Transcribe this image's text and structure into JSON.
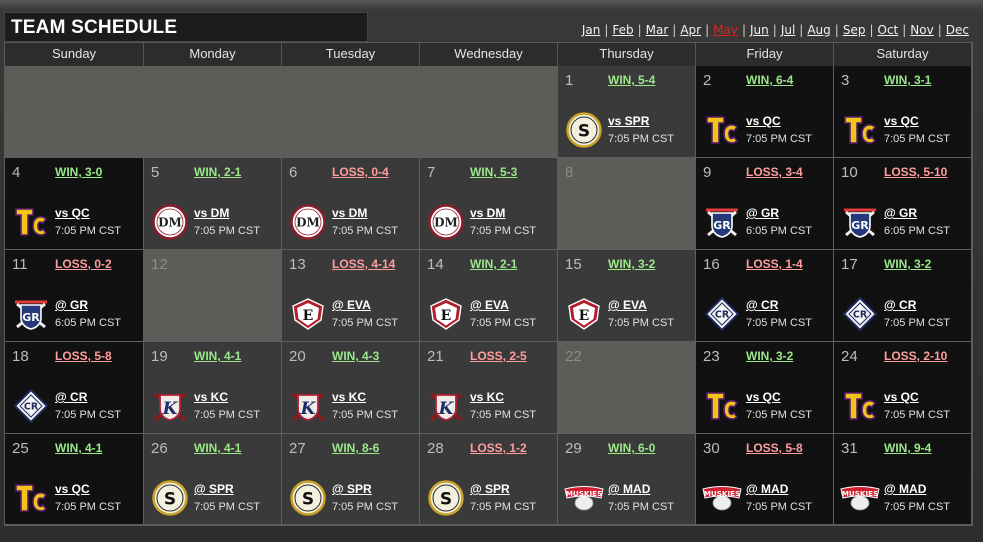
{
  "title": "TEAM SCHEDULE",
  "months": [
    "Jan",
    "Feb",
    "Mar",
    "Apr",
    "May",
    "Jun",
    "Jul",
    "Aug",
    "Sep",
    "Oct",
    "Nov",
    "Dec"
  ],
  "active_month": "May",
  "weekdays": [
    "Sunday",
    "Monday",
    "Tuesday",
    "Wednesday",
    "Thursday",
    "Friday",
    "Saturday"
  ],
  "colors": {
    "win": "#9ae88a",
    "loss": "#ff9e9e",
    "active_month": "#e02020"
  },
  "days": [
    {
      "day": "",
      "result": "",
      "opponent": "",
      "time": "",
      "logo": ""
    },
    {
      "day": "",
      "result": "",
      "opponent": "",
      "time": "",
      "logo": ""
    },
    {
      "day": "",
      "result": "",
      "opponent": "",
      "time": "",
      "logo": ""
    },
    {
      "day": "",
      "result": "",
      "opponent": "",
      "time": "",
      "logo": ""
    },
    {
      "day": "1",
      "result": "WIN, 5-4",
      "opponent": "vs SPR",
      "time": "7:05 PM CST",
      "logo": "spr-logo-icon"
    },
    {
      "day": "2",
      "result": "WIN, 6-4",
      "opponent": "vs QC",
      "time": "7:05 PM CST",
      "logo": "qc-logo-icon"
    },
    {
      "day": "3",
      "result": "WIN, 3-1",
      "opponent": "vs QC",
      "time": "7:05 PM CST",
      "logo": "qc-logo-icon"
    },
    {
      "day": "4",
      "result": "WIN, 3-0",
      "opponent": "vs QC",
      "time": "7:05 PM CST",
      "logo": "qc-logo-icon"
    },
    {
      "day": "5",
      "result": "WIN, 2-1",
      "opponent": "vs DM",
      "time": "7:05 PM CST",
      "logo": "dm-logo-icon"
    },
    {
      "day": "6",
      "result": "LOSS, 0-4",
      "opponent": "vs DM",
      "time": "7:05 PM CST",
      "logo": "dm-logo-icon"
    },
    {
      "day": "7",
      "result": "WIN, 5-3",
      "opponent": "vs DM",
      "time": "7:05 PM CST",
      "logo": "dm-logo-icon"
    },
    {
      "day": "8",
      "result": "",
      "opponent": "",
      "time": "",
      "logo": ""
    },
    {
      "day": "9",
      "result": "LOSS, 3-4",
      "opponent": "@ GR",
      "time": "6:05 PM CST",
      "logo": "gr-logo-icon"
    },
    {
      "day": "10",
      "result": "LOSS, 5-10",
      "opponent": "@ GR",
      "time": "6:05 PM CST",
      "logo": "gr-logo-icon"
    },
    {
      "day": "11",
      "result": "LOSS, 0-2",
      "opponent": "@ GR",
      "time": "6:05 PM CST",
      "logo": "gr-logo-icon"
    },
    {
      "day": "12",
      "result": "",
      "opponent": "",
      "time": "",
      "logo": ""
    },
    {
      "day": "13",
      "result": "LOSS, 4-14",
      "opponent": "@ EVA",
      "time": "7:05 PM CST",
      "logo": "eva-logo-icon"
    },
    {
      "day": "14",
      "result": "WIN, 2-1",
      "opponent": "@ EVA",
      "time": "7:05 PM CST",
      "logo": "eva-logo-icon"
    },
    {
      "day": "15",
      "result": "WIN, 3-2",
      "opponent": "@ EVA",
      "time": "7:05 PM CST",
      "logo": "eva-logo-icon"
    },
    {
      "day": "16",
      "result": "LOSS, 1-4",
      "opponent": "@ CR",
      "time": "7:05 PM CST",
      "logo": "cr-logo-icon"
    },
    {
      "day": "17",
      "result": "WIN, 3-2",
      "opponent": "@ CR",
      "time": "7:05 PM CST",
      "logo": "cr-logo-icon"
    },
    {
      "day": "18",
      "result": "LOSS, 5-8",
      "opponent": "@ CR",
      "time": "7:05 PM CST",
      "logo": "cr-logo-icon"
    },
    {
      "day": "19",
      "result": "WIN, 4-1",
      "opponent": "vs KC",
      "time": "7:05 PM CST",
      "logo": "kc-logo-icon"
    },
    {
      "day": "20",
      "result": "WIN, 4-3",
      "opponent": "vs KC",
      "time": "7:05 PM CST",
      "logo": "kc-logo-icon"
    },
    {
      "day": "21",
      "result": "LOSS, 2-5",
      "opponent": "vs KC",
      "time": "7:05 PM CST",
      "logo": "kc-logo-icon"
    },
    {
      "day": "22",
      "result": "",
      "opponent": "",
      "time": "",
      "logo": ""
    },
    {
      "day": "23",
      "result": "WIN, 3-2",
      "opponent": "vs QC",
      "time": "7:05 PM CST",
      "logo": "qc-logo-icon"
    },
    {
      "day": "24",
      "result": "LOSS, 2-10",
      "opponent": "vs QC",
      "time": "7:05 PM CST",
      "logo": "qc-logo-icon"
    },
    {
      "day": "25",
      "result": "WIN, 4-1",
      "opponent": "vs QC",
      "time": "7:05 PM CST",
      "logo": "qc-logo-icon"
    },
    {
      "day": "26",
      "result": "WIN, 4-1",
      "opponent": "@ SPR",
      "time": "7:05 PM CST",
      "logo": "spr-logo-icon"
    },
    {
      "day": "27",
      "result": "WIN, 8-6",
      "opponent": "@ SPR",
      "time": "7:05 PM CST",
      "logo": "spr-logo-icon"
    },
    {
      "day": "28",
      "result": "LOSS, 1-2",
      "opponent": "@ SPR",
      "time": "7:05 PM CST",
      "logo": "spr-logo-icon"
    },
    {
      "day": "29",
      "result": "WIN, 6-0",
      "opponent": "@ MAD",
      "time": "7:05 PM CST",
      "logo": "mad-logo-icon"
    },
    {
      "day": "30",
      "result": "LOSS, 5-8",
      "opponent": "@ MAD",
      "time": "7:05 PM CST",
      "logo": "mad-logo-icon"
    },
    {
      "day": "31",
      "result": "WIN, 9-4",
      "opponent": "@ MAD",
      "time": "7:05 PM CST",
      "logo": "mad-logo-icon"
    }
  ],
  "logo_text": {
    "spr": "S",
    "dm": "DM",
    "gr": "GR",
    "eva": "E",
    "cr": "CR",
    "kc": "K",
    "mad": "MUSKIES"
  }
}
